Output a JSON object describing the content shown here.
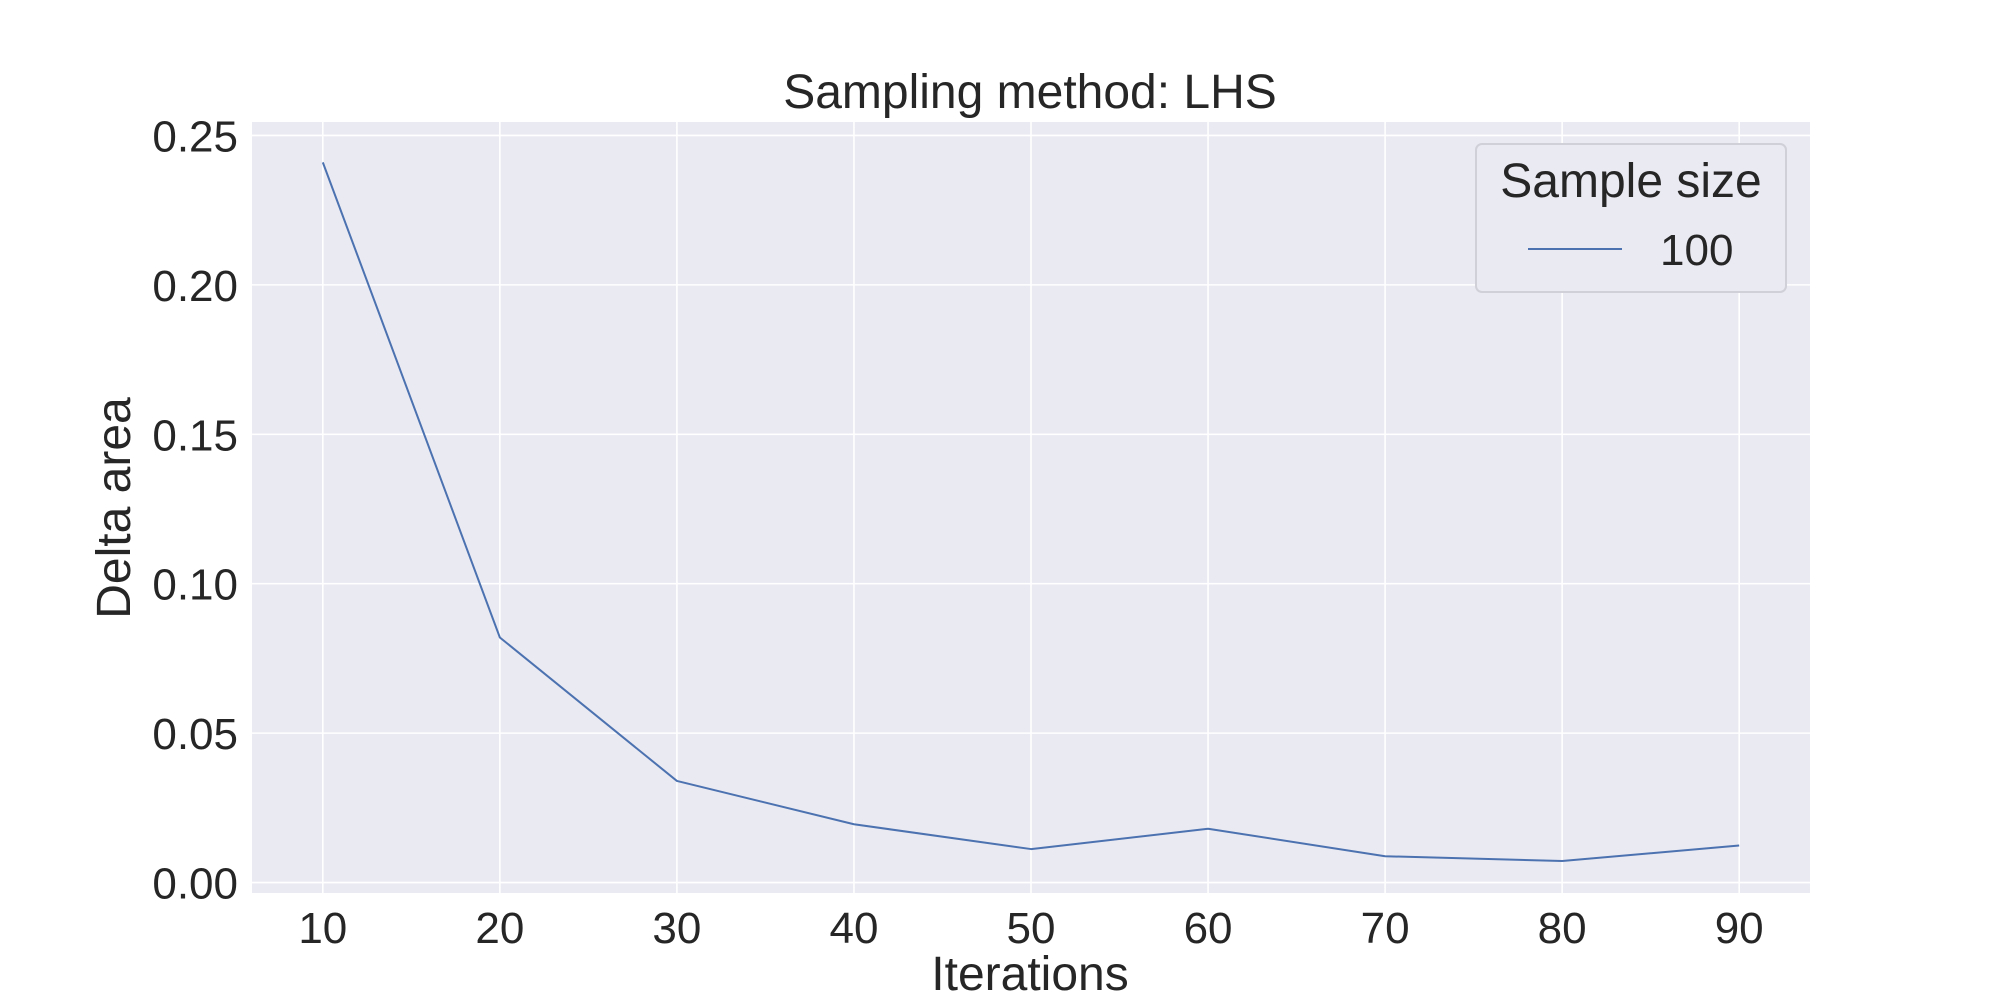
{
  "chart_data": {
    "type": "line",
    "title": "Sampling method: LHS",
    "xlabel": "Iterations",
    "ylabel": "Delta area",
    "xlim": [
      6,
      94
    ],
    "ylim": [
      -0.0035,
      0.2545
    ],
    "xticks": [
      10,
      20,
      30,
      40,
      50,
      60,
      70,
      80,
      90
    ],
    "yticks": [
      0.0,
      0.05,
      0.1,
      0.15,
      0.2,
      0.25
    ],
    "ytick_labels": [
      "0.00",
      "0.05",
      "0.10",
      "0.15",
      "0.20",
      "0.25"
    ],
    "grid": true,
    "legend": {
      "title": "Sample size",
      "placement": "top-right"
    },
    "series": [
      {
        "name": "100",
        "color": "#4c72b0",
        "x": [
          10,
          20,
          30,
          40,
          50,
          60,
          70,
          80,
          90
        ],
        "y": [
          0.241,
          0.082,
          0.034,
          0.0195,
          0.0112,
          0.018,
          0.0088,
          0.0072,
          0.0124
        ]
      }
    ],
    "colors": {
      "plot_background": "#eaeaf2",
      "grid": "#ffffff",
      "text": "#262626"
    }
  }
}
